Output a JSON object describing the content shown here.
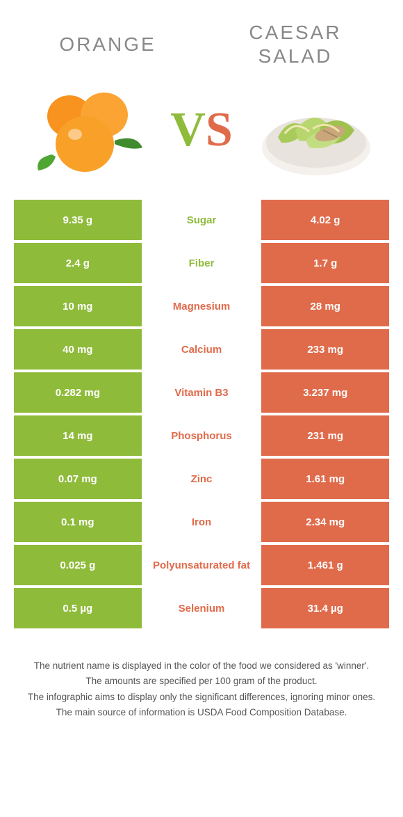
{
  "colors": {
    "left": "#8fbb3b",
    "right": "#e06b4b",
    "bg": "#ffffff",
    "title": "#888888",
    "text": "#555555"
  },
  "header": {
    "left_title": "Orange",
    "right_title": "Caesar salad",
    "vs_v": "V",
    "vs_s": "S"
  },
  "rows": [
    {
      "left": "9.35 g",
      "label": "Sugar",
      "right": "4.02 g",
      "winner": "left"
    },
    {
      "left": "2.4 g",
      "label": "Fiber",
      "right": "1.7 g",
      "winner": "left"
    },
    {
      "left": "10 mg",
      "label": "Magnesium",
      "right": "28 mg",
      "winner": "right"
    },
    {
      "left": "40 mg",
      "label": "Calcium",
      "right": "233 mg",
      "winner": "right"
    },
    {
      "left": "0.282 mg",
      "label": "Vitamin B3",
      "right": "3.237 mg",
      "winner": "right"
    },
    {
      "left": "14 mg",
      "label": "Phosphorus",
      "right": "231 mg",
      "winner": "right"
    },
    {
      "left": "0.07 mg",
      "label": "Zinc",
      "right": "1.61 mg",
      "winner": "right"
    },
    {
      "left": "0.1 mg",
      "label": "Iron",
      "right": "2.34 mg",
      "winner": "right"
    },
    {
      "left": "0.025 g",
      "label": "Polyunsaturated fat",
      "right": "1.461 g",
      "winner": "right"
    },
    {
      "left": "0.5 µg",
      "label": "Selenium",
      "right": "31.4 µg",
      "winner": "right"
    }
  ],
  "footer": {
    "line1": "The nutrient name is displayed in the color of the food we considered as 'winner'.",
    "line2": "The amounts are specified per 100 gram of the product.",
    "line3": "The infographic aims to display only the significant differences, ignoring minor ones.",
    "line4": "The main source of information is USDA Food Composition Database."
  }
}
